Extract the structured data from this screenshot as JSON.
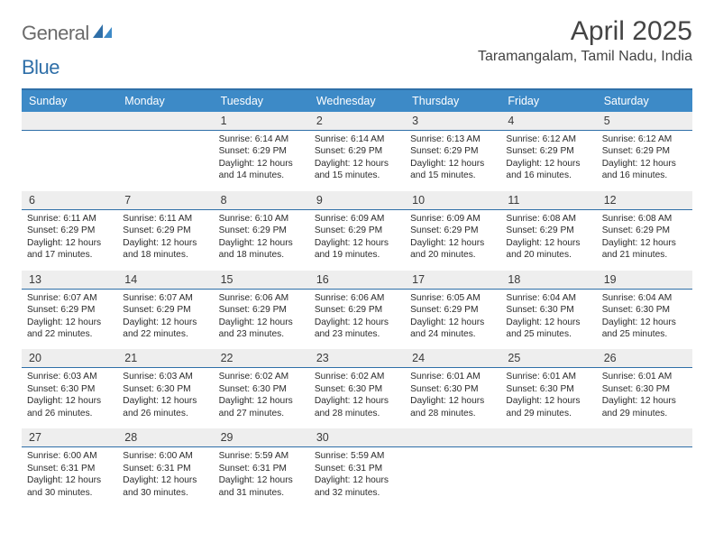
{
  "brand": {
    "part1": "General",
    "part2": "Blue"
  },
  "title": "April 2025",
  "location": "Taramangalam, Tamil Nadu, India",
  "colors": {
    "header_bg": "#3d8ac7",
    "border": "#2f6fa8",
    "daynum_bg": "#eeeeee",
    "text": "#333333",
    "logo_gray": "#6b6b6b",
    "logo_blue": "#2f6fa8"
  },
  "typography": {
    "title_fontsize": 30,
    "location_fontsize": 16,
    "header_fontsize": 12.5,
    "daynum_fontsize": 12.5,
    "info_fontsize": 10.2
  },
  "weekdays": [
    "Sunday",
    "Monday",
    "Tuesday",
    "Wednesday",
    "Thursday",
    "Friday",
    "Saturday"
  ],
  "weeks": [
    {
      "nums": [
        "",
        "",
        "1",
        "2",
        "3",
        "4",
        "5"
      ],
      "info": [
        "",
        "",
        "Sunrise: 6:14 AM\nSunset: 6:29 PM\nDaylight: 12 hours and 14 minutes.",
        "Sunrise: 6:14 AM\nSunset: 6:29 PM\nDaylight: 12 hours and 15 minutes.",
        "Sunrise: 6:13 AM\nSunset: 6:29 PM\nDaylight: 12 hours and 15 minutes.",
        "Sunrise: 6:12 AM\nSunset: 6:29 PM\nDaylight: 12 hours and 16 minutes.",
        "Sunrise: 6:12 AM\nSunset: 6:29 PM\nDaylight: 12 hours and 16 minutes."
      ]
    },
    {
      "nums": [
        "6",
        "7",
        "8",
        "9",
        "10",
        "11",
        "12"
      ],
      "info": [
        "Sunrise: 6:11 AM\nSunset: 6:29 PM\nDaylight: 12 hours and 17 minutes.",
        "Sunrise: 6:11 AM\nSunset: 6:29 PM\nDaylight: 12 hours and 18 minutes.",
        "Sunrise: 6:10 AM\nSunset: 6:29 PM\nDaylight: 12 hours and 18 minutes.",
        "Sunrise: 6:09 AM\nSunset: 6:29 PM\nDaylight: 12 hours and 19 minutes.",
        "Sunrise: 6:09 AM\nSunset: 6:29 PM\nDaylight: 12 hours and 20 minutes.",
        "Sunrise: 6:08 AM\nSunset: 6:29 PM\nDaylight: 12 hours and 20 minutes.",
        "Sunrise: 6:08 AM\nSunset: 6:29 PM\nDaylight: 12 hours and 21 minutes."
      ]
    },
    {
      "nums": [
        "13",
        "14",
        "15",
        "16",
        "17",
        "18",
        "19"
      ],
      "info": [
        "Sunrise: 6:07 AM\nSunset: 6:29 PM\nDaylight: 12 hours and 22 minutes.",
        "Sunrise: 6:07 AM\nSunset: 6:29 PM\nDaylight: 12 hours and 22 minutes.",
        "Sunrise: 6:06 AM\nSunset: 6:29 PM\nDaylight: 12 hours and 23 minutes.",
        "Sunrise: 6:06 AM\nSunset: 6:29 PM\nDaylight: 12 hours and 23 minutes.",
        "Sunrise: 6:05 AM\nSunset: 6:29 PM\nDaylight: 12 hours and 24 minutes.",
        "Sunrise: 6:04 AM\nSunset: 6:30 PM\nDaylight: 12 hours and 25 minutes.",
        "Sunrise: 6:04 AM\nSunset: 6:30 PM\nDaylight: 12 hours and 25 minutes."
      ]
    },
    {
      "nums": [
        "20",
        "21",
        "22",
        "23",
        "24",
        "25",
        "26"
      ],
      "info": [
        "Sunrise: 6:03 AM\nSunset: 6:30 PM\nDaylight: 12 hours and 26 minutes.",
        "Sunrise: 6:03 AM\nSunset: 6:30 PM\nDaylight: 12 hours and 26 minutes.",
        "Sunrise: 6:02 AM\nSunset: 6:30 PM\nDaylight: 12 hours and 27 minutes.",
        "Sunrise: 6:02 AM\nSunset: 6:30 PM\nDaylight: 12 hours and 28 minutes.",
        "Sunrise: 6:01 AM\nSunset: 6:30 PM\nDaylight: 12 hours and 28 minutes.",
        "Sunrise: 6:01 AM\nSunset: 6:30 PM\nDaylight: 12 hours and 29 minutes.",
        "Sunrise: 6:01 AM\nSunset: 6:30 PM\nDaylight: 12 hours and 29 minutes."
      ]
    },
    {
      "nums": [
        "27",
        "28",
        "29",
        "30",
        "",
        "",
        ""
      ],
      "info": [
        "Sunrise: 6:00 AM\nSunset: 6:31 PM\nDaylight: 12 hours and 30 minutes.",
        "Sunrise: 6:00 AM\nSunset: 6:31 PM\nDaylight: 12 hours and 30 minutes.",
        "Sunrise: 5:59 AM\nSunset: 6:31 PM\nDaylight: 12 hours and 31 minutes.",
        "Sunrise: 5:59 AM\nSunset: 6:31 PM\nDaylight: 12 hours and 32 minutes.",
        "",
        "",
        ""
      ]
    }
  ]
}
